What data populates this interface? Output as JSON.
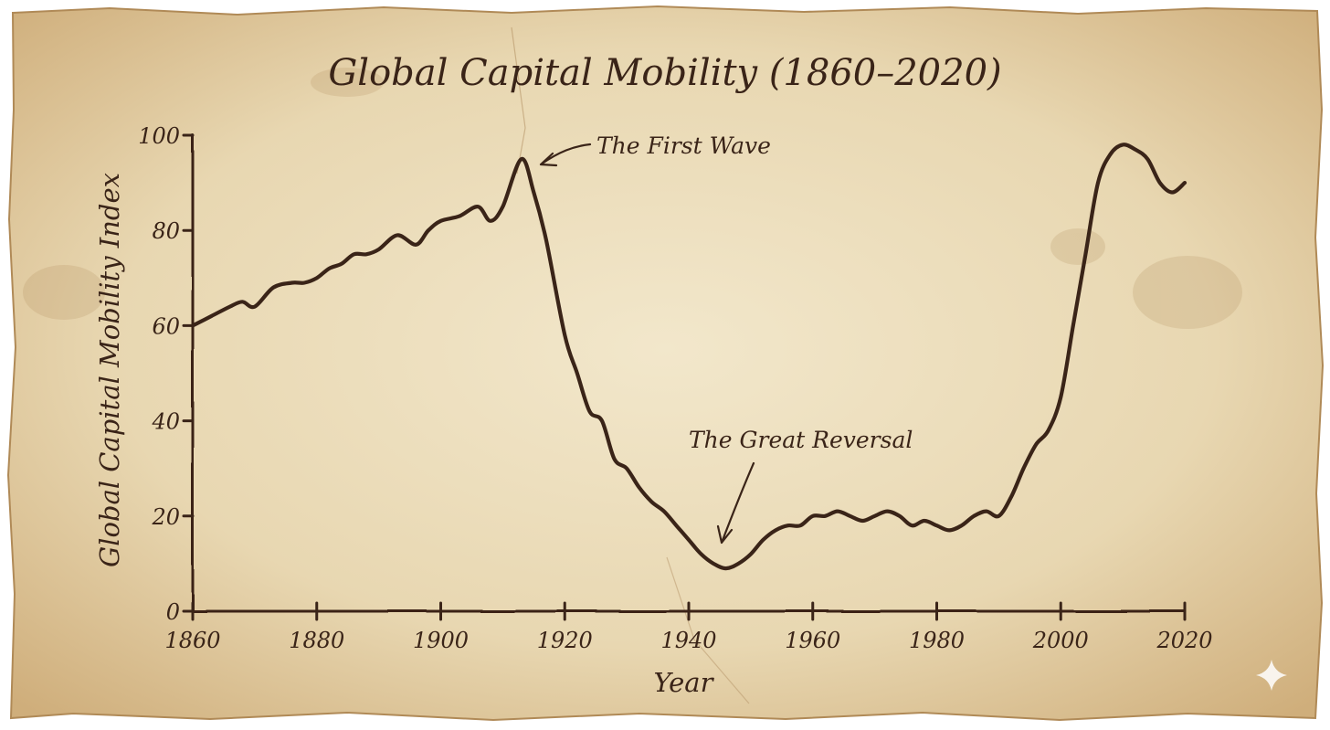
{
  "chart_data": {
    "type": "line",
    "title": "Global Capital Mobility (1860–2020)",
    "xlabel": "Year",
    "ylabel": "Global Capital Mobility Index",
    "xlim": [
      1860,
      2020
    ],
    "ylim": [
      0,
      100
    ],
    "x_ticks": [
      1860,
      1880,
      1900,
      1920,
      1940,
      1960,
      1980,
      2000,
      2020
    ],
    "y_ticks": [
      0,
      20,
      40,
      60,
      80,
      100
    ],
    "grid": false,
    "legend": "none",
    "series": [
      {
        "name": "Global Capital Mobility Index",
        "color": "#3a2418",
        "x": [
          1860,
          1863,
          1866,
          1868,
          1870,
          1873,
          1876,
          1878,
          1880,
          1882,
          1884,
          1886,
          1888,
          1890,
          1893,
          1896,
          1898,
          1900,
          1903,
          1906,
          1908,
          1910,
          1913,
          1915,
          1917,
          1920,
          1922,
          1924,
          1926,
          1928,
          1930,
          1932,
          1934,
          1936,
          1938,
          1940,
          1942,
          1944,
          1946,
          1948,
          1950,
          1952,
          1954,
          1956,
          1958,
          1960,
          1962,
          1964,
          1966,
          1968,
          1970,
          1972,
          1974,
          1976,
          1978,
          1980,
          1982,
          1984,
          1986,
          1988,
          1990,
          1992,
          1994,
          1996,
          1998,
          2000,
          2002,
          2004,
          2006,
          2008,
          2010,
          2012,
          2014,
          2016,
          2018,
          2020
        ],
        "values": [
          60,
          62,
          64,
          65,
          64,
          68,
          69,
          69,
          70,
          72,
          73,
          75,
          75,
          76,
          79,
          77,
          80,
          82,
          83,
          85,
          82,
          85,
          95,
          88,
          78,
          58,
          50,
          42,
          40,
          32,
          30,
          26,
          23,
          21,
          18,
          15,
          12,
          10,
          9,
          10,
          12,
          15,
          17,
          18,
          18,
          20,
          20,
          21,
          20,
          19,
          20,
          21,
          20,
          18,
          19,
          18,
          17,
          18,
          20,
          21,
          20,
          24,
          30,
          35,
          38,
          45,
          60,
          75,
          90,
          96,
          98,
          97,
          95,
          90,
          88,
          90
        ]
      }
    ],
    "annotations": [
      {
        "text": "The First Wave",
        "x": 1913,
        "y": 95
      },
      {
        "text": "The Great Reversal",
        "x": 1946,
        "y": 9
      }
    ]
  },
  "colors": {
    "paper": "#e8d9b5",
    "paper_dark": "#caa674",
    "ink": "#3a2418",
    "page": "#ffffff"
  }
}
